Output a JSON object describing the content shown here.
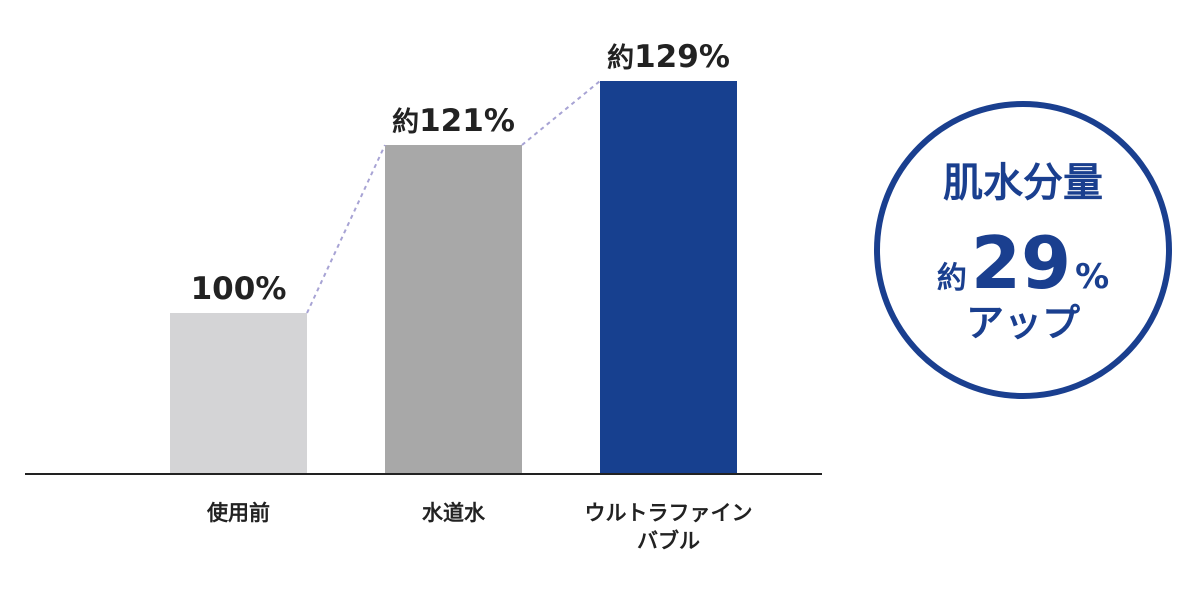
{
  "chart_data": {
    "type": "bar",
    "categories": [
      [
        "使用前"
      ],
      [
        "水道水"
      ],
      [
        "ウルトラファイン",
        "バブル"
      ]
    ],
    "values": [
      100,
      121,
      129
    ],
    "value_labels": [
      {
        "prefix": "",
        "text": "100%"
      },
      {
        "prefix": "約",
        "text": "121%"
      },
      {
        "prefix": "約",
        "text": "129%"
      }
    ],
    "title": "",
    "xlabel": "",
    "ylabel": "",
    "ylim": [
      80,
      130
    ],
    "grid": false,
    "colors": [
      "#d4d4d6",
      "#a8a8a8",
      "#17408f"
    ],
    "connector_color": "#a7a3d4",
    "connector_style": "dashed"
  },
  "badge": {
    "line1": "肌水分量",
    "prefix": "約",
    "number": "29",
    "unit": "%",
    "line3": "アップ",
    "color": "#1a3f8f"
  }
}
